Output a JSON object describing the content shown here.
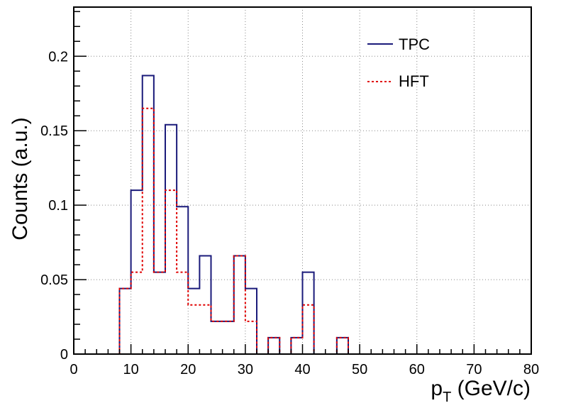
{
  "chart_data": {
    "type": "histogram",
    "xlabel_main": "p",
    "xlabel_sub": "T",
    "xlabel_rest": " (GeV/c)",
    "ylabel": "Counts (a.u.)",
    "xlim": [
      0,
      80
    ],
    "ylim": [
      0,
      0.233
    ],
    "x_ticks": [
      "0",
      "10",
      "20",
      "30",
      "40",
      "50",
      "60",
      "70",
      "80"
    ],
    "y_ticks": [
      "0",
      "0.05",
      "0.1",
      "0.15",
      "0.2"
    ],
    "grid": true,
    "legend_position": "top-right",
    "bin_edges": [
      0,
      2,
      4,
      6,
      8,
      10,
      12,
      14,
      16,
      18,
      20,
      22,
      24,
      26,
      28,
      30,
      32,
      34,
      36,
      38,
      40,
      42,
      44,
      46,
      48,
      50,
      52,
      54,
      56,
      58,
      60,
      62,
      64,
      66,
      68,
      70,
      72,
      74,
      76,
      78,
      80
    ],
    "series": [
      {
        "name": "TPC",
        "color": "#1a1a7a",
        "style": "solid",
        "values": [
          0,
          0,
          0,
          0,
          0.044,
          0.11,
          0.187,
          0.055,
          0.154,
          0.099,
          0.044,
          0.066,
          0.022,
          0.022,
          0.066,
          0.044,
          0,
          0.011,
          0,
          0.011,
          0.055,
          0,
          0,
          0.011,
          0,
          0,
          0,
          0,
          0,
          0,
          0,
          0,
          0,
          0,
          0,
          0,
          0,
          0,
          0,
          0
        ]
      },
      {
        "name": "HFT",
        "color": "#e00000",
        "style": "dashed",
        "values": [
          0,
          0,
          0,
          0,
          0.044,
          0.055,
          0.165,
          0.055,
          0.11,
          0.055,
          0.033,
          0.033,
          0.022,
          0.022,
          0.066,
          0.022,
          0,
          0.011,
          0,
          0.011,
          0.033,
          0,
          0,
          0.011,
          0,
          0,
          0,
          0,
          0,
          0,
          0,
          0,
          0,
          0,
          0,
          0,
          0,
          0,
          0,
          0
        ]
      }
    ]
  }
}
